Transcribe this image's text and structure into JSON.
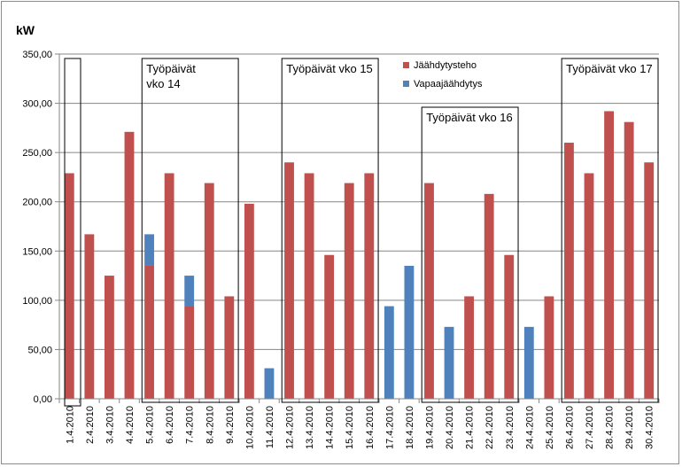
{
  "chart_data": {
    "type": "bar",
    "stacked": true,
    "ylabel": "kW",
    "ylim": [
      0,
      350
    ],
    "ytick_step": 50,
    "ytick_labels": [
      "0,00",
      "50,00",
      "100,00",
      "150,00",
      "200,00",
      "250,00",
      "300,00",
      "350,00"
    ],
    "grid": true,
    "legend_position": "upper-right",
    "categories": [
      "1.4.2010",
      "2.4.2010",
      "3.4.2010",
      "4.4.2010",
      "5.4.2010",
      "6.4.2010",
      "7.4.2010",
      "8.4.2010",
      "9.4.2010",
      "10.4.2010",
      "11.4.2010",
      "12.4.2010",
      "13.4.2010",
      "14.4.2010",
      "15.4.2010",
      "16.4.2010",
      "17.4.2010",
      "18.4.2010",
      "19.4.2010",
      "20.4.2010",
      "21.4.2010",
      "22.4.2010",
      "23.4.2010",
      "24.4.2010",
      "25.4.2010",
      "26.4.2010",
      "27.4.2010",
      "28.4.2010",
      "29.4.2010",
      "30.4.2010"
    ],
    "series": [
      {
        "name": "Jäähdytysteho",
        "color": "#c0504d",
        "values": [
          229,
          167,
          125,
          271,
          135,
          229,
          94,
          219,
          104,
          198,
          0,
          240,
          229,
          146,
          219,
          229,
          0,
          0,
          219,
          0,
          104,
          208,
          146,
          0,
          104,
          260,
          229,
          292,
          281,
          240
        ]
      },
      {
        "name": "Vapaajäähdytys",
        "color": "#4f81bd",
        "values": [
          0,
          0,
          0,
          0,
          32,
          0,
          31,
          0,
          0,
          0,
          31,
          0,
          0,
          0,
          0,
          0,
          94,
          135,
          0,
          73,
          0,
          0,
          0,
          73,
          0,
          0,
          0,
          0,
          0,
          0
        ]
      }
    ],
    "annotations": [
      {
        "lines": [
          ""
        ],
        "from": 0,
        "to": 0
      },
      {
        "lines": [
          "Työpäivät",
          "vko 14"
        ],
        "from": 4,
        "to": 8
      },
      {
        "lines": [
          "Työpäivät vko 15"
        ],
        "from": 11,
        "to": 15
      },
      {
        "lines": [
          "Työpäivät vko 16"
        ],
        "from": 18,
        "to": 22
      },
      {
        "lines": [
          "Työpäivät vko 17"
        ],
        "from": 25,
        "to": 29
      }
    ]
  }
}
